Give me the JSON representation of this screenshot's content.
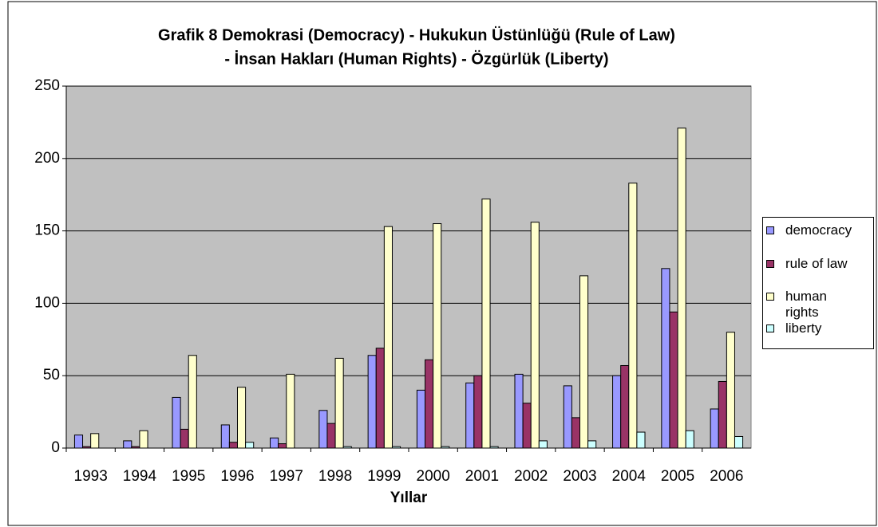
{
  "chart_data": {
    "type": "bar",
    "title": [
      "Grafik 8 Demokrasi (Democracy) - Hukukun Üstünlüğü (Rule of Law)",
      "- İnsan Hakları (Human Rights) - Özgürlük (Liberty)"
    ],
    "x_label": "Yıllar",
    "categories": [
      "1993",
      "1994",
      "1995",
      "1996",
      "1997",
      "1998",
      "1999",
      "2000",
      "2001",
      "2002",
      "2003",
      "2004",
      "2005",
      "2006"
    ],
    "series": [
      {
        "name": "democracy",
        "color": "#9999ff",
        "values": [
          9,
          5,
          35,
          16,
          7,
          26,
          64,
          40,
          45,
          51,
          43,
          50,
          124,
          27
        ]
      },
      {
        "name": "rule of law",
        "color": "#993366",
        "values": [
          1,
          1,
          13,
          4,
          3,
          17,
          69,
          61,
          50,
          31,
          21,
          57,
          94,
          46
        ]
      },
      {
        "name": "human rights",
        "color": "#ffffcc",
        "values": [
          10,
          12,
          64,
          42,
          51,
          62,
          153,
          155,
          172,
          156,
          119,
          183,
          221,
          80
        ]
      },
      {
        "name": "liberty",
        "color": "#ccffff",
        "values": [
          0,
          0,
          0,
          4,
          0,
          1,
          1,
          1,
          1,
          5,
          5,
          11,
          12,
          8
        ]
      }
    ],
    "ylim": [
      0,
      250
    ],
    "yticks": [
      0,
      50,
      100,
      150,
      200,
      250
    ],
    "grid": true,
    "legend": "right"
  }
}
